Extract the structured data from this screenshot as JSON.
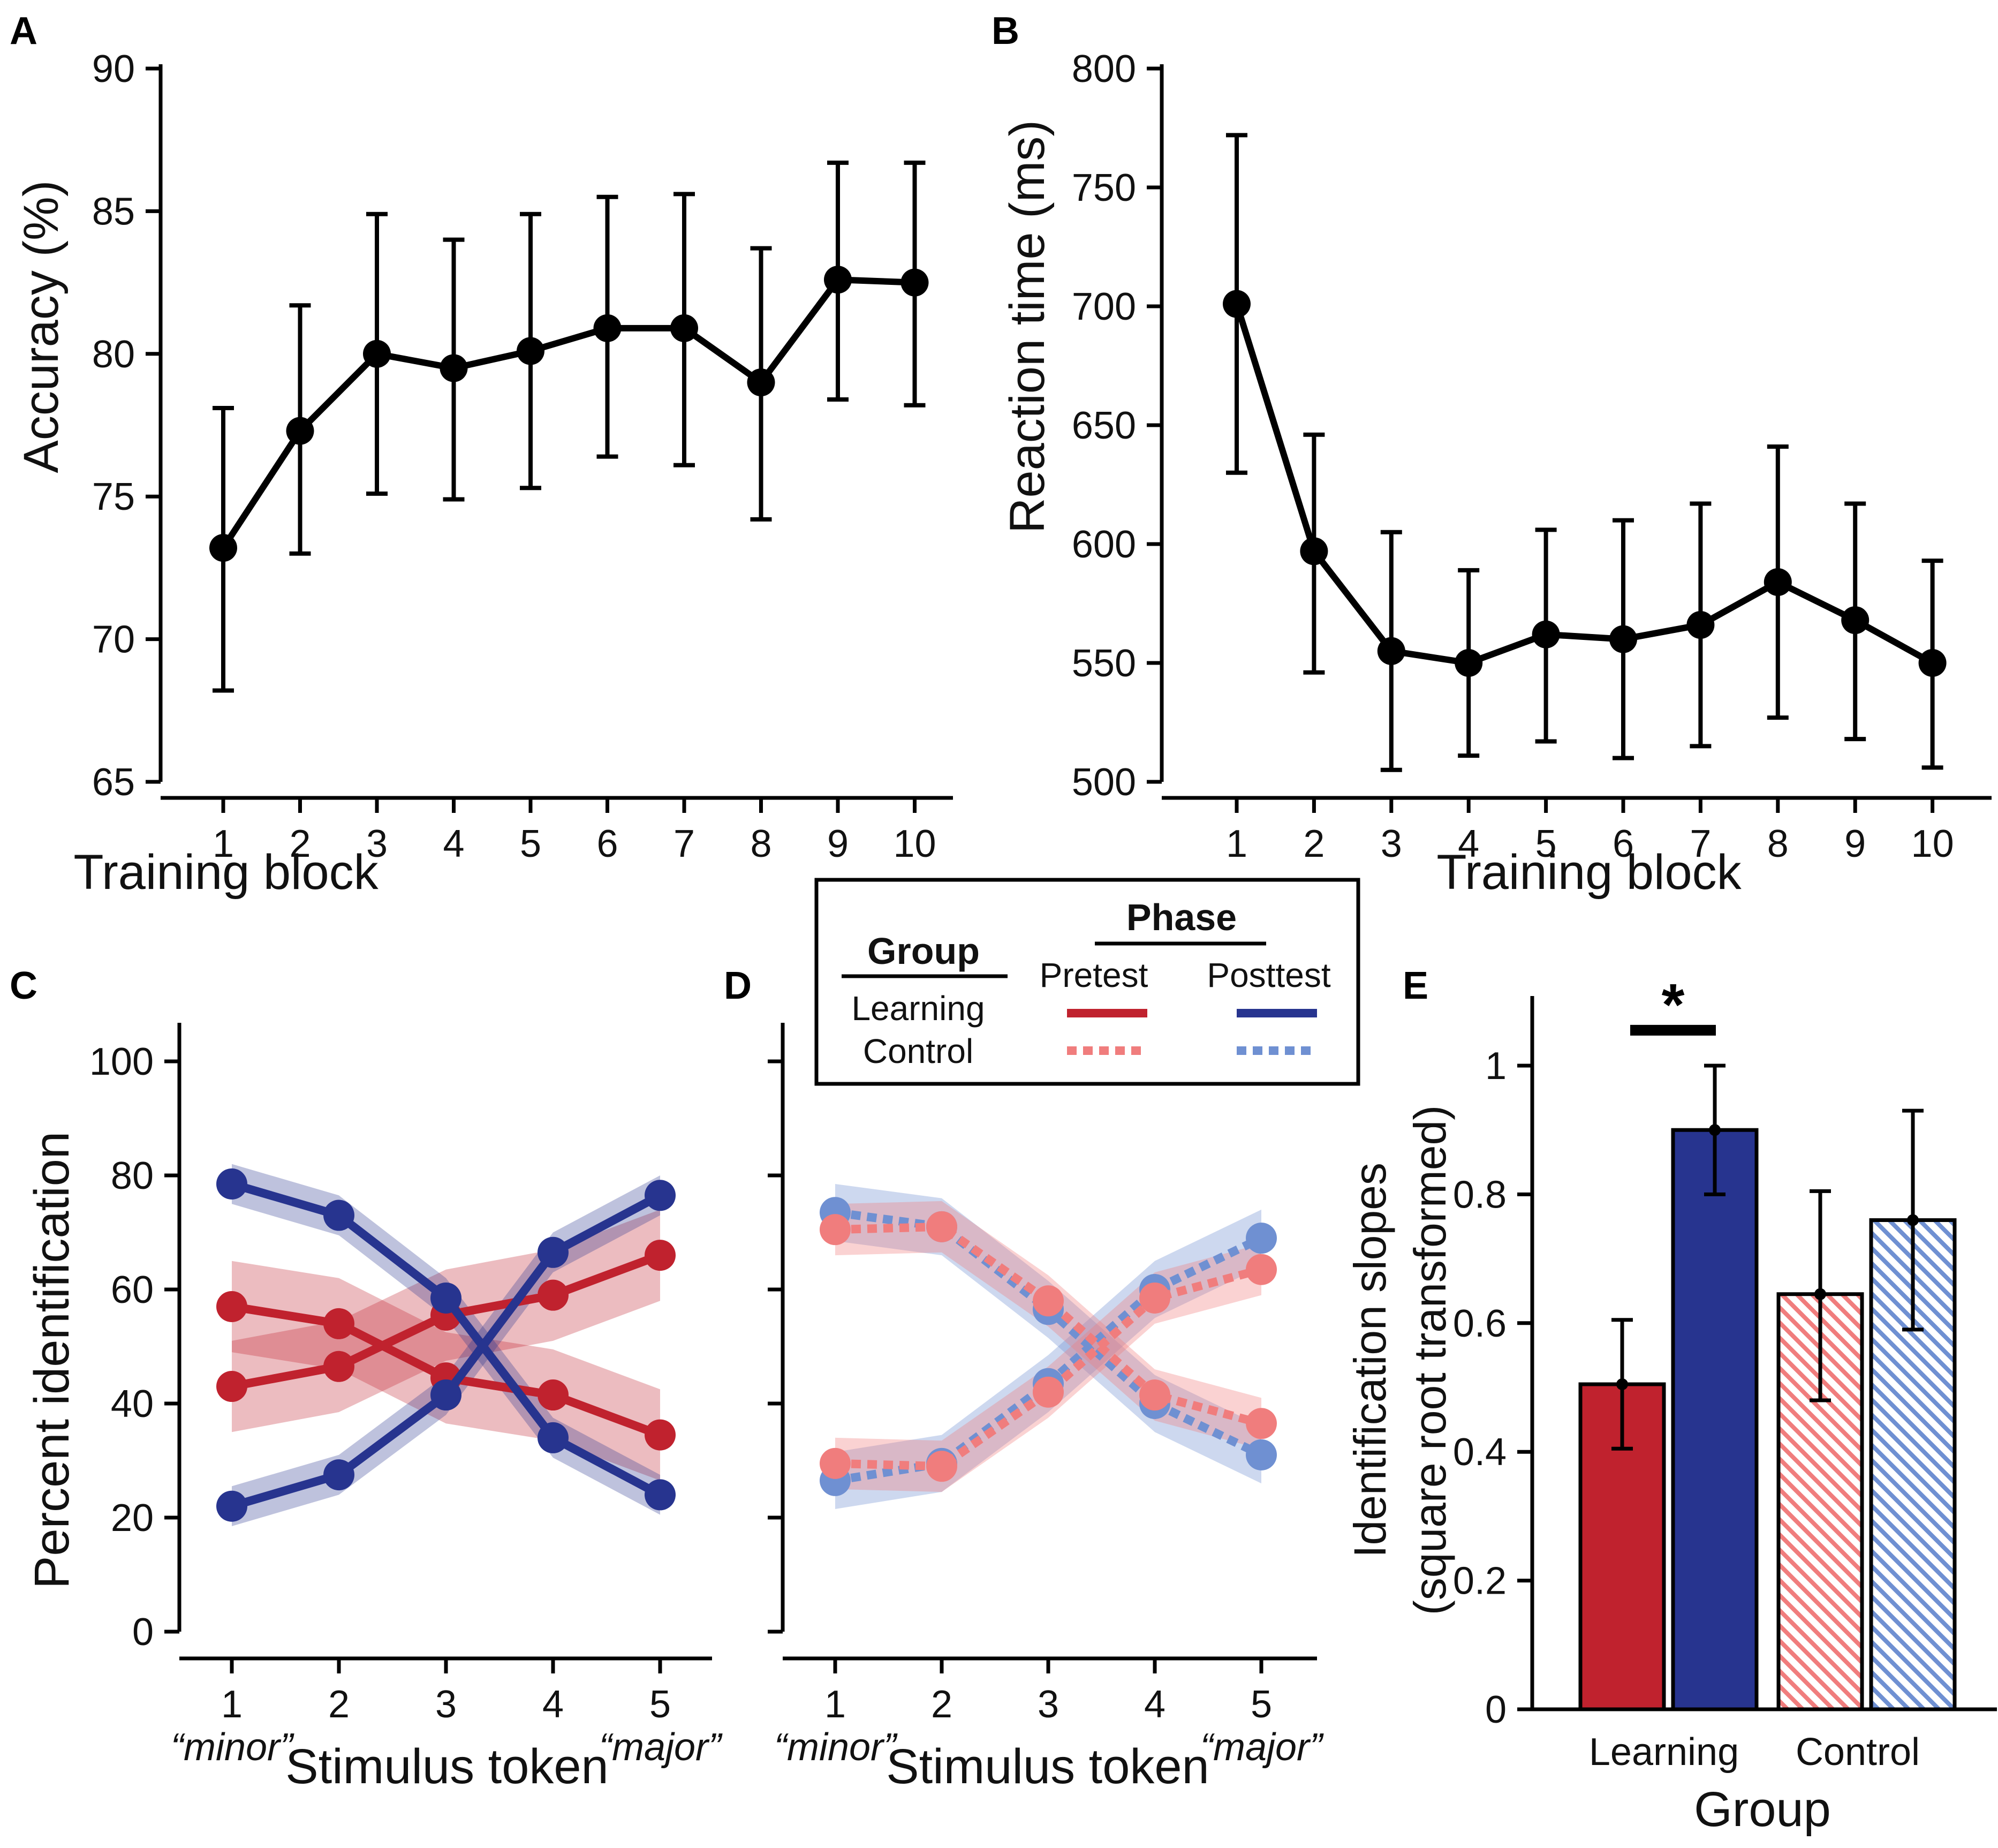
{
  "chart_data": [
    {
      "panel": "A",
      "type": "line",
      "x": [
        1,
        2,
        3,
        4,
        5,
        6,
        7,
        8,
        9,
        10
      ],
      "values": [
        73.2,
        77.3,
        80.0,
        79.5,
        80.1,
        80.9,
        80.9,
        79.0,
        82.6,
        82.5
      ],
      "err_low": [
        68.2,
        73.0,
        75.1,
        74.9,
        75.3,
        76.4,
        76.1,
        74.2,
        78.4,
        78.2
      ],
      "err_high": [
        78.1,
        81.7,
        84.9,
        84.0,
        84.9,
        85.5,
        85.6,
        83.7,
        86.7,
        86.7
      ],
      "xlabel": "Training block",
      "ylabel": "Accuracy (%)",
      "ylim": [
        65,
        90
      ],
      "yticks": [
        65,
        70,
        75,
        80,
        85,
        90
      ],
      "xticks": [
        "1",
        "2",
        "3",
        "4",
        "5",
        "6",
        "7",
        "8",
        "9",
        "10"
      ],
      "color": "#000000"
    },
    {
      "panel": "B",
      "type": "line",
      "x": [
        1,
        2,
        3,
        4,
        5,
        6,
        7,
        8,
        9,
        10
      ],
      "values": [
        701,
        597,
        555,
        550,
        562,
        560,
        566,
        584,
        568,
        550
      ],
      "err_low": [
        630,
        546,
        505,
        511,
        517,
        510,
        515,
        527,
        518,
        506
      ],
      "err_high": [
        772,
        646,
        605,
        589,
        606,
        610,
        617,
        641,
        617,
        593
      ],
      "xlabel": "Training block",
      "ylabel": "Reaction time (ms)",
      "ylim": [
        500,
        800
      ],
      "yticks": [
        500,
        550,
        600,
        650,
        700,
        750,
        800
      ],
      "xticks": [
        "1",
        "2",
        "3",
        "4",
        "5",
        "6",
        "7",
        "8",
        "9",
        "10"
      ],
      "color": "#000000"
    },
    {
      "panel": "C",
      "type": "line",
      "categories": [
        "1",
        "2",
        "3",
        "4",
        "5"
      ],
      "endpoint_labels": [
        "“minor”",
        "“major”"
      ],
      "series": [
        {
          "name": "Learning Pretest minor",
          "values": [
            57,
            54,
            44.5,
            41.5,
            34.5
          ],
          "band": 8,
          "color": "#c0222e",
          "style": "solid"
        },
        {
          "name": "Learning Pretest major",
          "values": [
            43,
            46.5,
            55.5,
            59,
            66
          ],
          "band": 8,
          "color": "#c0222e",
          "style": "solid"
        },
        {
          "name": "Learning Posttest minor",
          "values": [
            78.5,
            73,
            58.5,
            34,
            24
          ],
          "band": 3.5,
          "color": "#27348f",
          "style": "solid"
        },
        {
          "name": "Learning Posttest major",
          "values": [
            22,
            27.5,
            41.5,
            66.5,
            76.5
          ],
          "band": 3.5,
          "color": "#27348f",
          "style": "solid"
        }
      ],
      "xlabel": "Stimulus token",
      "ylabel": "Percent identification",
      "ylim": [
        0,
        100
      ],
      "yticks": [
        0,
        20,
        40,
        60,
        80,
        100
      ]
    },
    {
      "panel": "D",
      "type": "line",
      "categories": [
        "1",
        "2",
        "3",
        "4",
        "5"
      ],
      "endpoint_labels": [
        "“minor”",
        "“major”"
      ],
      "series": [
        {
          "name": "Control Posttest minor",
          "values": [
            73.5,
            71,
            56.5,
            40,
            31
          ],
          "band": 5,
          "color": "#6f90d2",
          "style": "dotted"
        },
        {
          "name": "Control Posttest major",
          "values": [
            26.5,
            29.5,
            43.5,
            60,
            69
          ],
          "band": 5,
          "color": "#6f90d2",
          "style": "dotted"
        },
        {
          "name": "Control Pretest minor",
          "values": [
            70.5,
            71,
            58,
            41.5,
            36.5
          ],
          "band": 4.5,
          "color": "#f07d7d",
          "style": "dotted"
        },
        {
          "name": "Control Pretest major",
          "values": [
            29.5,
            29,
            42,
            58.5,
            63.5
          ],
          "band": 4.5,
          "color": "#f07d7d",
          "style": "dotted"
        }
      ],
      "xlabel": "Stimulus token",
      "ylim": [
        0,
        100
      ]
    },
    {
      "panel": "E",
      "type": "bar",
      "categories": [
        "Learning",
        "Control"
      ],
      "series": [
        {
          "name": "Pretest",
          "values": [
            0.505,
            0.645
          ],
          "err_low": [
            0.405,
            0.48
          ],
          "err_high": [
            0.605,
            0.805
          ]
        },
        {
          "name": "Posttest",
          "values": [
            0.9,
            0.76
          ],
          "err_low": [
            0.8,
            0.59
          ],
          "err_high": [
            1.0,
            0.93
          ]
        }
      ],
      "bar_colors": [
        "#c0222e",
        "#27348f",
        "#f07d7d",
        "#6f90d2"
      ],
      "bar_hatched": [
        false,
        false,
        true,
        true
      ],
      "xlabel": "Group",
      "ylabel_line1": "Identification slopes",
      "ylabel_line2": "(square root transformed)",
      "ylim": [
        0,
        1.1
      ],
      "yticks": [
        0,
        0.2,
        0.4,
        0.6,
        0.8,
        1
      ],
      "ytick_labels": [
        "0",
        "0.2",
        "0.4",
        "0.6",
        "0.8",
        "1"
      ],
      "significance": "*"
    }
  ],
  "legend": {
    "group_title": "Group",
    "phase_title": "Phase",
    "pretest": "Pretest",
    "posttest": "Posttest",
    "learning": "Learning",
    "control": "Control"
  },
  "panel_labels": [
    "A",
    "B",
    "C",
    "D",
    "E"
  ],
  "colors": {
    "learning_pre": "#c0222e",
    "learning_post": "#27348f",
    "control_pre": "#f07d7d",
    "control_post": "#6f90d2"
  }
}
